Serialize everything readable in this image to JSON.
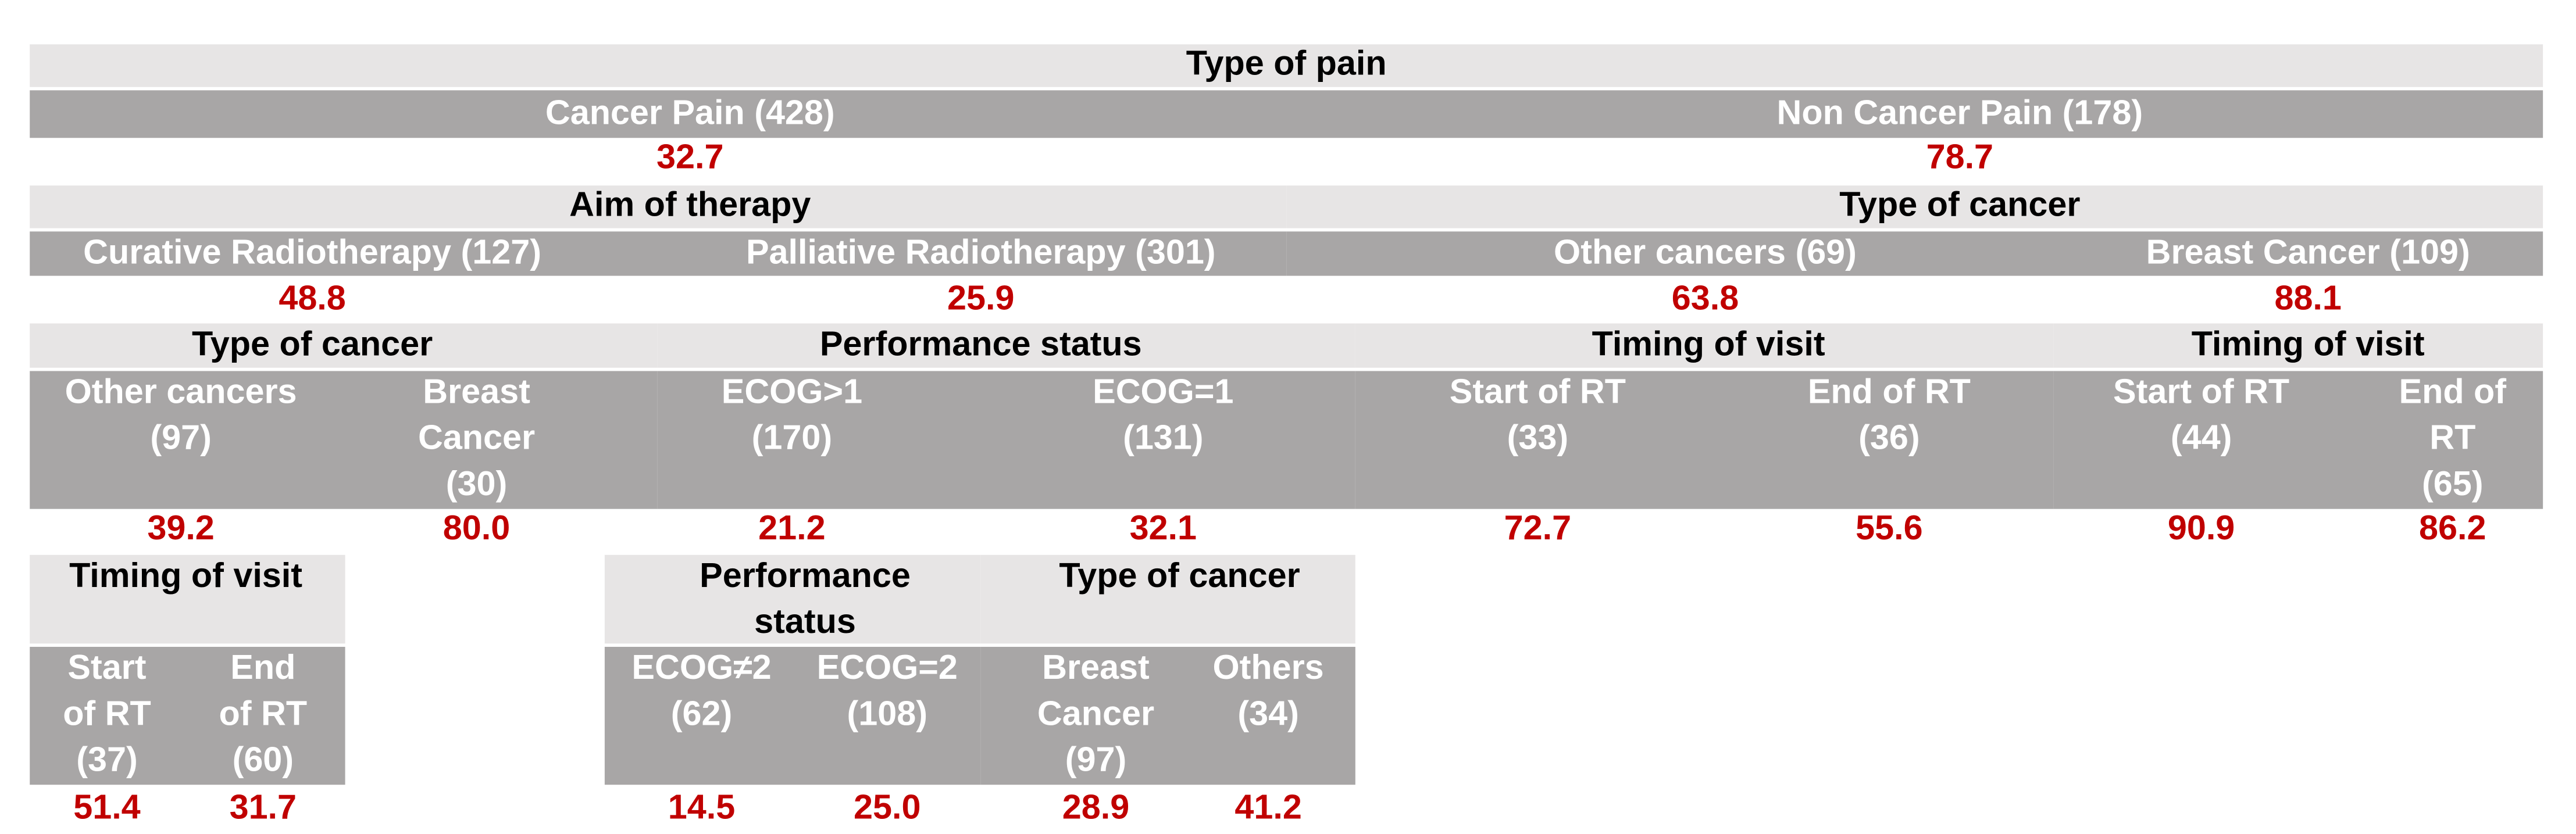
{
  "tree": {
    "title": [
      "Type of pain"
    ],
    "branches": [
      {
        "label": [
          "Cancer Pain (428)"
        ],
        "value": "32.7",
        "split": {
          "title": [
            "Aim of therapy"
          ],
          "branches": [
            {
              "label": [
                "Curative Radiotherapy (127)"
              ],
              "value": "48.8",
              "split": {
                "title": [
                  "Type of cancer"
                ],
                "branches": [
                  {
                    "label": [
                      "Other cancers",
                      "(97)"
                    ],
                    "value": "39.2",
                    "split": {
                      "title": [
                        "Timing of visit"
                      ],
                      "branches": [
                        {
                          "label": [
                            "Start",
                            "of RT",
                            "(37)"
                          ],
                          "value": "51.4"
                        },
                        {
                          "label": [
                            "End",
                            "of RT",
                            "(60)"
                          ],
                          "value": "31.7"
                        }
                      ]
                    }
                  },
                  {
                    "label": [
                      "Breast",
                      "Cancer",
                      "(30)"
                    ],
                    "value": "80.0"
                  }
                ]
              }
            },
            {
              "label": [
                "Palliative Radiotherapy (301)"
              ],
              "value": "25.9",
              "split": {
                "title": [
                  "Performance status"
                ],
                "branches": [
                  {
                    "label": [
                      "ECOG>1",
                      "(170)"
                    ],
                    "value": "21.2",
                    "split": {
                      "title": [
                        "Performance",
                        "status"
                      ],
                      "branches": [
                        {
                          "label": [
                            "ECOG≠2",
                            "(62)"
                          ],
                          "value": "14.5"
                        },
                        {
                          "label": [
                            "ECOG=2",
                            "(108)"
                          ],
                          "value": "25.0"
                        }
                      ]
                    }
                  },
                  {
                    "label": [
                      "ECOG=1",
                      "(131)"
                    ],
                    "value": "32.1",
                    "split": {
                      "title": [
                        "Type of cancer"
                      ],
                      "branches": [
                        {
                          "label": [
                            "Breast",
                            "Cancer",
                            "(97)"
                          ],
                          "value": "28.9"
                        },
                        {
                          "label": [
                            "Others",
                            "(34)"
                          ],
                          "value": "41.2"
                        }
                      ]
                    }
                  }
                ]
              }
            }
          ]
        }
      },
      {
        "label": [
          "Non Cancer Pain (178)"
        ],
        "value": "78.7",
        "split": {
          "title": [
            "Type of cancer"
          ],
          "branches": [
            {
              "label": [
                "Other cancers (69)"
              ],
              "value": "63.8",
              "split": {
                "title": [
                  "Timing of visit"
                ],
                "branches": [
                  {
                    "label": [
                      "Start of RT",
                      "(33)"
                    ],
                    "value": "72.7"
                  },
                  {
                    "label": [
                      "End of RT",
                      "(36)"
                    ],
                    "value": "55.6"
                  }
                ]
              }
            },
            {
              "label": [
                "Breast Cancer (109)"
              ],
              "value": "88.1",
              "split": {
                "title": [
                  "Timing of visit"
                ],
                "branches": [
                  {
                    "label": [
                      "Start of RT",
                      "(44)"
                    ],
                    "value": "90.9"
                  },
                  {
                    "label": [
                      "End of",
                      "RT",
                      "(65)"
                    ],
                    "value": "86.2"
                  }
                ]
              }
            }
          ]
        }
      }
    ]
  }
}
